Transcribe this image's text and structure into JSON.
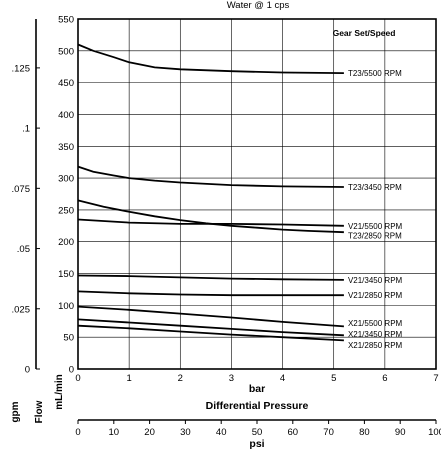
{
  "chart_data": {
    "type": "line",
    "title": "Water @ 1 cps",
    "legend_title": "Gear Set/Speed",
    "x_label_primary": "bar",
    "x_label_center": "Differential Pressure",
    "x_label_secondary": "psi",
    "y_label_left_1": "gpm",
    "y_label_left_2": "Flow",
    "y_label_left_3": "mL/min",
    "xlim": [
      0,
      7
    ],
    "ylim": [
      0,
      550
    ],
    "x_ticks": [
      "0",
      "1",
      "2",
      "3",
      "4",
      "5",
      "6",
      "7"
    ],
    "y_ticks": [
      "0",
      "50",
      "100",
      "150",
      "200",
      "250",
      "300",
      "350",
      "400",
      "450",
      "500",
      "550"
    ],
    "psi_ticks": [
      "0",
      "10",
      "20",
      "30",
      "40",
      "50",
      "60",
      "70",
      "80",
      "90",
      "100"
    ],
    "gpm_ticks": [
      {
        "label": "0",
        "value": 0
      },
      {
        "label": ".025",
        "value": 0.025
      },
      {
        "label": ".05",
        "value": 0.05
      },
      {
        "label": ".075",
        "value": 0.075
      },
      {
        "label": ".1",
        "value": 0.1
      },
      {
        "label": ".125",
        "value": 0.125
      }
    ],
    "series": [
      {
        "name": "T23/5500 RPM",
        "x": [
          0,
          0.3,
          0.7,
          1.0,
          1.5,
          2.0,
          3.0,
          4.0,
          5.2
        ],
        "y": [
          510,
          500,
          490,
          482,
          474,
          471,
          468,
          466,
          465
        ]
      },
      {
        "name": "T23/3450 RPM",
        "x": [
          0,
          0.3,
          0.7,
          1.0,
          1.5,
          2.0,
          3.0,
          4.0,
          5.2
        ],
        "y": [
          318,
          310,
          304,
          300,
          296,
          293,
          289,
          287,
          286
        ]
      },
      {
        "name": "V21/5500 RPM",
        "x": [
          0,
          1.0,
          2.0,
          3.0,
          4.0,
          5.2
        ],
        "y": [
          235,
          230,
          228,
          228,
          227,
          225
        ]
      },
      {
        "name": "T23/2850 RPM",
        "x": [
          0,
          0.5,
          1.0,
          1.5,
          2.0,
          2.5,
          3.0,
          3.5,
          4.0,
          4.5,
          5.2
        ],
        "y": [
          265,
          255,
          247,
          240,
          234,
          229,
          225,
          222,
          219,
          217,
          215
        ]
      },
      {
        "name": "V21/3450 RPM",
        "x": [
          0,
          1.0,
          2.0,
          3.0,
          4.0,
          5.2
        ],
        "y": [
          147,
          146,
          144,
          142,
          141,
          140
        ]
      },
      {
        "name": "V21/2850 RPM",
        "x": [
          0,
          1.0,
          2.0,
          3.0,
          4.0,
          5.2
        ],
        "y": [
          122,
          119,
          117,
          116,
          116,
          116
        ]
      },
      {
        "name": "X21/5500 RPM",
        "x": [
          0,
          1.0,
          2.0,
          3.0,
          4.0,
          5.2
        ],
        "y": [
          98,
          93,
          87,
          81,
          74,
          67
        ]
      },
      {
        "name": "X21/3450 RPM",
        "x": [
          0,
          1.0,
          2.0,
          3.0,
          4.0,
          5.2
        ],
        "y": [
          78,
          73,
          68,
          63,
          58,
          53
        ]
      },
      {
        "name": "X21/2850 RPM",
        "x": [
          0,
          1.0,
          2.0,
          3.0,
          4.0,
          5.2
        ],
        "y": [
          68,
          64,
          59,
          54,
          50,
          45
        ]
      }
    ],
    "series_label_y": [
      465,
      286,
      225,
      210,
      140,
      116,
      72,
      55,
      38
    ],
    "grid": true,
    "legend_placement": "right-end-of-curves"
  }
}
